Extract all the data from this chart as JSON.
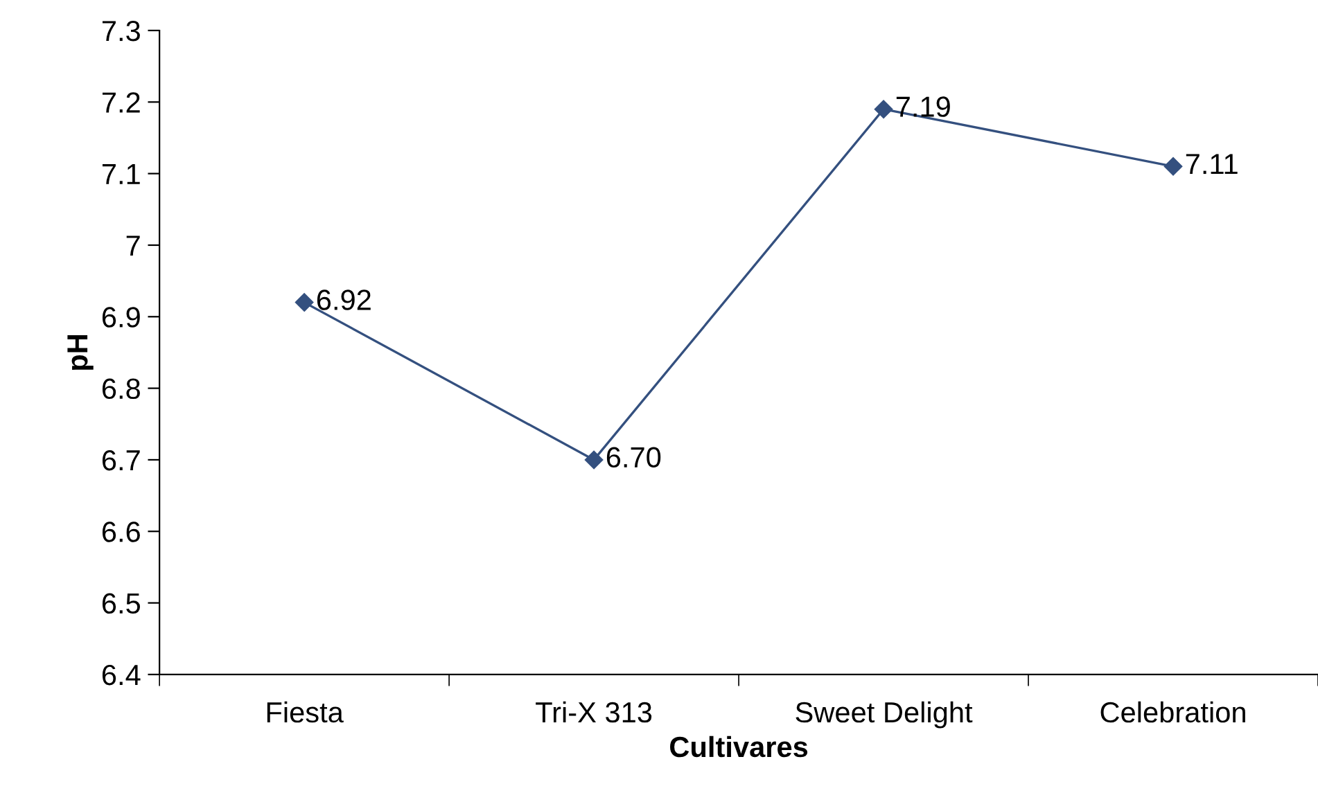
{
  "chart_data": {
    "type": "line",
    "xlabel": "Cultivares",
    "ylabel": "pH",
    "categories": [
      "Fiesta",
      "Tri-X 313",
      "Sweet Delight",
      "Celebration"
    ],
    "series": [
      {
        "color": "#34507f",
        "values": [
          6.92,
          6.7,
          7.19,
          7.11
        ],
        "value_labels": [
          "6.92",
          "6.70",
          "7.19",
          "7.11"
        ]
      }
    ],
    "ylim": [
      6.4,
      7.3
    ],
    "yticks": [
      6.4,
      6.5,
      6.6,
      6.7,
      6.8,
      6.9,
      7,
      7.1,
      7.2,
      7.3
    ],
    "grid": false,
    "legend": false,
    "marker": "diamond",
    "line_style": "solid"
  }
}
